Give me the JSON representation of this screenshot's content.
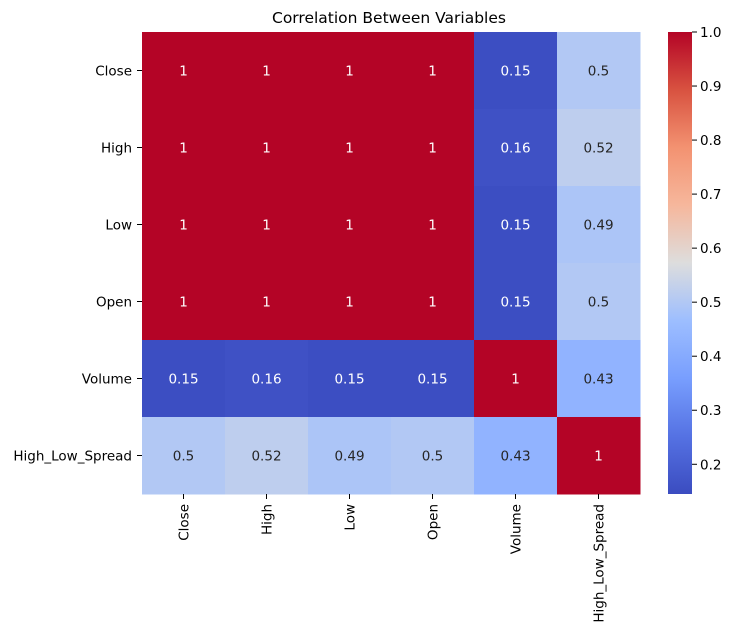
{
  "chart_data": {
    "type": "heatmap",
    "title": "Correlation Between Variables",
    "xlabel": "",
    "ylabel": "",
    "rows": [
      "Close",
      "High",
      "Low",
      "Open",
      "Volume",
      "High_Low_Spread"
    ],
    "columns": [
      "Close",
      "High",
      "Low",
      "Open",
      "Volume",
      "High_Low_Spread"
    ],
    "values": [
      [
        1,
        1,
        1,
        1,
        0.15,
        0.5
      ],
      [
        1,
        1,
        1,
        1,
        0.16,
        0.52
      ],
      [
        1,
        1,
        1,
        1,
        0.15,
        0.49
      ],
      [
        1,
        1,
        1,
        1,
        0.15,
        0.5
      ],
      [
        0.15,
        0.16,
        0.15,
        0.15,
        1,
        0.43
      ],
      [
        0.5,
        0.52,
        0.49,
        0.5,
        0.43,
        1
      ]
    ],
    "labels": [
      [
        "1",
        "1",
        "1",
        "1",
        "0.15",
        "0.5"
      ],
      [
        "1",
        "1",
        "1",
        "1",
        "0.16",
        "0.52"
      ],
      [
        "1",
        "1",
        "1",
        "1",
        "0.15",
        "0.49"
      ],
      [
        "1",
        "1",
        "1",
        "1",
        "0.15",
        "0.5"
      ],
      [
        "0.15",
        "0.16",
        "0.15",
        "0.15",
        "1",
        "0.43"
      ],
      [
        "0.5",
        "0.52",
        "0.49",
        "0.5",
        "0.43",
        "1"
      ]
    ],
    "colormap": "coolwarm",
    "colorbar": {
      "range": [
        0.145,
        1.0
      ],
      "ticks": [
        0.2,
        0.3,
        0.4,
        0.5,
        0.6,
        0.7,
        0.8,
        0.9,
        1.0
      ],
      "tick_labels": [
        "0.2",
        "0.3",
        "0.4",
        "0.5",
        "0.6",
        "0.7",
        "0.8",
        "0.9",
        "1.0"
      ]
    }
  }
}
